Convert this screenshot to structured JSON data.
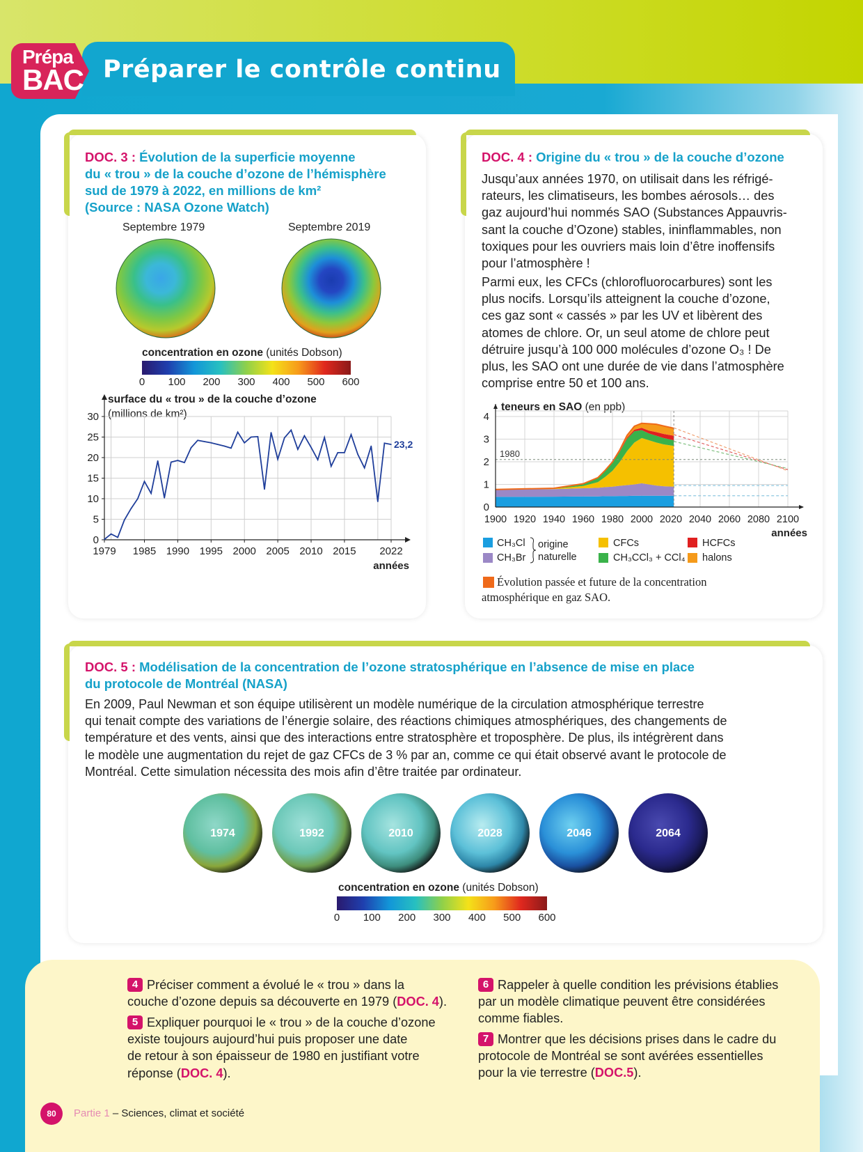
{
  "header": {
    "badge_top": "Prépa",
    "badge_bottom": "BAC",
    "title": "Préparer le contrôle continu"
  },
  "doc3": {
    "num": "DOC. 3 :",
    "title_lines": [
      "Évolution de la superficie moyenne",
      "du « trou » de la couche d’ozone de l’hémisphère",
      "sud de 1979 à 2022, en millions de km²",
      "(Source : NASA Ozone Watch)"
    ],
    "map_left_label": "Septembre 1979",
    "map_right_label": "Septembre 2019",
    "scale_title_bold": "concentration en ozone",
    "scale_title_unit": "(unités Dobson)",
    "scale_ticks": [
      "0",
      "100",
      "200",
      "300",
      "400",
      "500",
      "600"
    ],
    "colors": {
      "scale": [
        "#2a1a6e",
        "#1f3fae",
        "#1296d8",
        "#27c0c0",
        "#8fd04a",
        "#f4e219",
        "#f79a1a",
        "#e0281e",
        "#8b1a1a"
      ]
    }
  },
  "chart_data": {
    "type": "line",
    "title": "surface du « trou » de la couche d’ozone",
    "title_unit": "(millions de km²)",
    "xlabel": "années",
    "x_ticks": [
      "1979",
      "1985",
      "1990",
      "1995",
      "2000",
      "2005",
      "2010",
      "2015",
      "2022"
    ],
    "y_ticks": [
      "0",
      "5",
      "10",
      "15",
      "20",
      "25",
      "30"
    ],
    "xlim": [
      1979,
      2022
    ],
    "ylim": [
      0,
      30
    ],
    "end_label": "23,2",
    "grid": true,
    "series": [
      {
        "x": [
          1979,
          1980,
          1981,
          1982,
          1983,
          1984,
          1985,
          1986,
          1987,
          1988,
          1989,
          1990,
          1991,
          1992,
          1993,
          1994,
          1995,
          1996,
          1997,
          1998,
          1999,
          2000,
          2001,
          2002,
          2003,
          2004,
          2005,
          2006,
          2007,
          2008,
          2009,
          2010,
          2011,
          2012,
          2013,
          2014,
          2015,
          2016,
          2017,
          2018,
          2019,
          2020,
          2021,
          2022
        ],
        "y": [
          0.1,
          1.4,
          0.6,
          4.8,
          7.6,
          10.0,
          14.2,
          11.3,
          19.2,
          10.2,
          18.9,
          19.3,
          18.8,
          22.4,
          24.2,
          23.9,
          23.6,
          23.2,
          22.8,
          22.3,
          26.2,
          23.6,
          25.0,
          25.1,
          12.3,
          26.1,
          19.6,
          24.8,
          26.7,
          22.0,
          25.3,
          22.5,
          19.5,
          24.9,
          17.9,
          21.2,
          21.2,
          25.6,
          20.8,
          17.5,
          22.8,
          9.3,
          23.5,
          23.2
        ]
      }
    ]
  },
  "doc4": {
    "num": "DOC. 4 :",
    "title": "Origine du « trou » de la couche d’ozone",
    "para1_lines": [
      "Jusqu’aux années 1970, on utilisait dans les réfrigé-",
      "rateurs, les climatiseurs, les bombes aérosols… des",
      "gaz aujourd’hui nommés SAO (Substances Appauvris-",
      "sant la couche d’Ozone) stables, ininflammables, non",
      "toxiques pour les ouvriers mais loin d’être inoffensifs",
      "pour l’atmosphère !"
    ],
    "para2_lines": [
      "Parmi eux, les CFCs (chlorofluorocarbures) sont les",
      "plus nocifs. Lorsqu’ils atteignent la couche d’ozone,",
      "ces gaz sont « cassés » par les UV et libèrent des",
      "atomes de chlore. Or, un seul atome de chlore peut",
      "détruire jusqu’à 100 000 molécules d’ozone O₃ ! De",
      "plus, les SAO ont une durée de vie dans l’atmosphère",
      "comprise entre 50 et 100 ans."
    ],
    "chart": {
      "title_bold": "teneurs en SAO",
      "title_unit": "(en ppb)",
      "xlabel": "années",
      "x_ticks": [
        "1900",
        "1920",
        "1940",
        "1960",
        "1980",
        "2000",
        "2020",
        "2040",
        "2060",
        "2080",
        "2100"
      ],
      "y_ticks": [
        "0",
        "1",
        "2",
        "3",
        "4"
      ],
      "ref_label": "1980",
      "xlim": [
        1900,
        2100
      ],
      "ylim": [
        0,
        4
      ],
      "ref_value": 2.1,
      "x": [
        1900,
        1940,
        1960,
        1970,
        1975,
        1980,
        1985,
        1990,
        1995,
        2000,
        2005,
        2010,
        2015,
        2022
      ],
      "stack": {
        "CH3Cl": [
          0.45,
          0.46,
          0.47,
          0.47,
          0.48,
          0.48,
          0.49,
          0.49,
          0.5,
          0.5,
          0.5,
          0.5,
          0.5,
          0.5
        ],
        "CH3Br": [
          0.33,
          0.33,
          0.36,
          0.38,
          0.4,
          0.42,
          0.45,
          0.48,
          0.5,
          0.55,
          0.5,
          0.45,
          0.42,
          0.4
        ],
        "CFCs": [
          0.0,
          0.02,
          0.1,
          0.25,
          0.45,
          0.7,
          1.05,
          1.5,
          1.85,
          2.0,
          1.95,
          1.9,
          1.85,
          1.8
        ],
        "CH3CCl3+CCl4": [
          0.0,
          0.02,
          0.1,
          0.2,
          0.28,
          0.35,
          0.45,
          0.55,
          0.5,
          0.35,
          0.3,
          0.3,
          0.28,
          0.25
        ],
        "HCFCs": [
          0.0,
          0.0,
          0.0,
          0.0,
          0.01,
          0.02,
          0.03,
          0.05,
          0.07,
          0.1,
          0.13,
          0.16,
          0.18,
          0.2
        ],
        "halons": [
          0.0,
          0.0,
          0.0,
          0.0,
          0.0,
          0.02,
          0.05,
          0.1,
          0.15,
          0.2,
          0.3,
          0.35,
          0.35,
          0.33
        ]
      },
      "future_lines": [
        {
          "color": "#f0a070",
          "from": [
            2022,
            3.5
          ],
          "to": [
            2100,
            1.6
          ]
        },
        {
          "color": "#e06060",
          "from": [
            2022,
            3.2
          ],
          "to": [
            2100,
            1.65
          ]
        },
        {
          "color": "#7fbf7f",
          "from": [
            2022,
            2.9
          ],
          "to": [
            2100,
            1.7
          ]
        },
        {
          "color": "#8ec8e0",
          "from": [
            2022,
            0.95
          ],
          "to": [
            2100,
            0.95
          ]
        },
        {
          "color": "#8ec8e0",
          "from": [
            2022,
            0.5
          ],
          "to": [
            2100,
            0.5
          ]
        }
      ],
      "colors": {
        "CH3Cl": "#1a9ee0",
        "CH3Br": "#9b88c6",
        "CFCs": "#f5c000",
        "CH3CCl3+CCl4": "#3ab24a",
        "HCFCs": "#e02020",
        "halons": "#f59a1a",
        "evolution": "#ef6a1a"
      }
    },
    "legend": {
      "ch3cl": "CH₃Cl",
      "ch3br": "CH₃Br",
      "origin1": "origine",
      "origin2": "naturelle",
      "cfcs": "CFCs",
      "ch3ccl3": "CH₃CCl₃ + CCl₄",
      "hcfcs": "HCFCs",
      "halons": "halons",
      "evolution_line1": "Évolution passée et future de la concentration",
      "evolution_line2": "atmosphérique en gaz SAO."
    }
  },
  "doc5": {
    "num": "DOC. 5 :",
    "title_lines": [
      "Modélisation de la concentration de l’ozone stratosphérique en l’absence de mise en place",
      "du protocole de Montréal (NASA)"
    ],
    "para_lines": [
      "En 2009, Paul Newman et son équipe utilisèrent un modèle numérique de la circulation atmosphérique terrestre",
      "qui tenait compte des variations de l’énergie solaire, des réactions chimiques atmosphériques, des changements de",
      "température et des vents, ainsi que des interactions entre stratosphère et troposphère. De plus, ils intégrèrent dans",
      "le modèle une augmentation du rejet de gaz CFCs de 3 % par an, comme ce qui était observé avant le protocole de",
      "Montréal. Cette simulation nécessita des mois afin d’être traitée par ordinateur."
    ],
    "globes": [
      "1974",
      "1992",
      "2010",
      "2028",
      "2046",
      "2064"
    ],
    "scale_title_bold": "concentration en ozone",
    "scale_title_unit": "(unités Dobson)",
    "scale_ticks": [
      "0",
      "100",
      "200",
      "300",
      "400",
      "500",
      "600"
    ]
  },
  "questions": [
    {
      "num": "4",
      "lines": [
        "Préciser comment a évolué le « trou » dans la",
        "couche d’ozone depuis sa découverte en 1979 (",
        "DOC. 4",
        ")."
      ]
    },
    {
      "num": "5",
      "lines": [
        "Expliquer pourquoi le « trou » de la couche d’ozone",
        "existe toujours aujourd’hui puis proposer une date",
        "de retour à son épaisseur de 1980 en justifiant votre",
        "réponse (",
        "DOC. 4",
        ")."
      ]
    },
    {
      "num": "6",
      "lines": [
        "Rappeler à quelle condition les prévisions établies",
        "par un modèle climatique peuvent être considérées",
        "comme fiables."
      ]
    },
    {
      "num": "7",
      "lines": [
        "Montrer que les décisions prises dans le cadre du",
        "protocole de Montréal se sont avérées essentielles",
        "pour la vie terrestre (",
        "DOC.5",
        ")."
      ]
    }
  ],
  "footer": {
    "page": "80",
    "part": "Partie 1",
    "rest": " – Sciences, climat et société"
  }
}
